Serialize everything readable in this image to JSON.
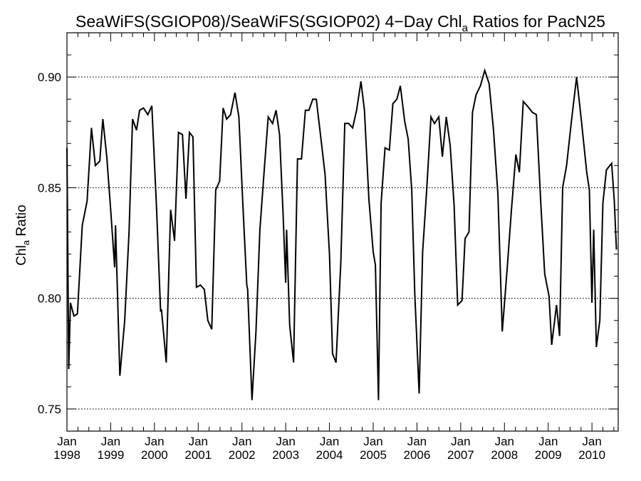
{
  "chart_data": {
    "type": "line",
    "title_prefix": "SeaWiFS(SGIOP08)/SeaWiFS(SGIOP02) 4−Day Chl",
    "title_subscript": "a",
    "title_suffix": " Ratios for PacN25",
    "ylabel_prefix": "Chl",
    "ylabel_subscript": "a",
    "ylabel_suffix": " Ratio",
    "ylim": [
      0.74,
      0.92
    ],
    "xlim": [
      1998.0,
      2010.6
    ],
    "grid": "horizontal dotted at major y ticks",
    "y_major_ticks": [
      0.75,
      0.8,
      0.85,
      0.9
    ],
    "y_tick_labels": [
      "0.75",
      "0.80",
      "0.85",
      "0.90"
    ],
    "x_ticks": [
      {
        "x": 1998,
        "month": "Jan",
        "year": "1998"
      },
      {
        "x": 1999,
        "month": "Jan",
        "year": "1999"
      },
      {
        "x": 2000,
        "month": "Jan",
        "year": "2000"
      },
      {
        "x": 2001,
        "month": "Jan",
        "year": "2001"
      },
      {
        "x": 2002,
        "month": "Jan",
        "year": "2002"
      },
      {
        "x": 2003,
        "month": "Jan",
        "year": "2003"
      },
      {
        "x": 2004,
        "month": "Jan",
        "year": "2004"
      },
      {
        "x": 2005,
        "month": "Jan",
        "year": "2005"
      },
      {
        "x": 2006,
        "month": "Jan",
        "year": "2006"
      },
      {
        "x": 2007,
        "month": "Jan",
        "year": "2007"
      },
      {
        "x": 2008,
        "month": "Jan",
        "year": "2008"
      },
      {
        "x": 2009,
        "month": "Jan",
        "year": "2009"
      },
      {
        "x": 2010,
        "month": "Jan",
        "year": "2010"
      }
    ],
    "series": [
      {
        "color": "#000000",
        "points": [
          [
            1998.0,
            0.868
          ],
          [
            1998.04,
            0.768
          ],
          [
            1998.08,
            0.798
          ],
          [
            1998.16,
            0.792
          ],
          [
            1998.24,
            0.793
          ],
          [
            1998.35,
            0.833
          ],
          [
            1998.46,
            0.844
          ],
          [
            1998.56,
            0.877
          ],
          [
            1998.65,
            0.86
          ],
          [
            1998.75,
            0.862
          ],
          [
            1998.82,
            0.881
          ],
          [
            1998.91,
            0.864
          ],
          [
            1999.0,
            0.84
          ],
          [
            1999.09,
            0.814
          ],
          [
            1999.11,
            0.833
          ],
          [
            1999.21,
            0.765
          ],
          [
            1999.32,
            0.79
          ],
          [
            1999.42,
            0.83
          ],
          [
            1999.5,
            0.881
          ],
          [
            1999.59,
            0.876
          ],
          [
            1999.66,
            0.885
          ],
          [
            1999.75,
            0.886
          ],
          [
            1999.85,
            0.883
          ],
          [
            1999.94,
            0.887
          ],
          [
            2000.05,
            0.84
          ],
          [
            2000.14,
            0.794
          ],
          [
            2000.16,
            0.795
          ],
          [
            2000.27,
            0.771
          ],
          [
            2000.37,
            0.84
          ],
          [
            2000.46,
            0.826
          ],
          [
            2000.55,
            0.875
          ],
          [
            2000.64,
            0.874
          ],
          [
            2000.72,
            0.845
          ],
          [
            2000.8,
            0.875
          ],
          [
            2000.88,
            0.873
          ],
          [
            2000.96,
            0.805
          ],
          [
            2001.05,
            0.806
          ],
          [
            2001.14,
            0.804
          ],
          [
            2001.22,
            0.79
          ],
          [
            2001.31,
            0.786
          ],
          [
            2001.4,
            0.849
          ],
          [
            2001.49,
            0.853
          ],
          [
            2001.57,
            0.886
          ],
          [
            2001.65,
            0.881
          ],
          [
            2001.74,
            0.883
          ],
          [
            2001.84,
            0.893
          ],
          [
            2001.93,
            0.882
          ],
          [
            2002.02,
            0.843
          ],
          [
            2002.11,
            0.806
          ],
          [
            2002.13,
            0.804
          ],
          [
            2002.23,
            0.754
          ],
          [
            2002.32,
            0.785
          ],
          [
            2002.41,
            0.831
          ],
          [
            2002.51,
            0.858
          ],
          [
            2002.6,
            0.882
          ],
          [
            2002.7,
            0.879
          ],
          [
            2002.78,
            0.885
          ],
          [
            2002.86,
            0.874
          ],
          [
            2002.94,
            0.838
          ],
          [
            2003.0,
            0.807
          ],
          [
            2003.02,
            0.831
          ],
          [
            2003.09,
            0.788
          ],
          [
            2003.18,
            0.771
          ],
          [
            2003.27,
            0.863
          ],
          [
            2003.36,
            0.863
          ],
          [
            2003.45,
            0.885
          ],
          [
            2003.53,
            0.885
          ],
          [
            2003.62,
            0.89
          ],
          [
            2003.7,
            0.89
          ],
          [
            2003.8,
            0.873
          ],
          [
            2003.9,
            0.856
          ],
          [
            2004.0,
            0.82
          ],
          [
            2004.07,
            0.775
          ],
          [
            2004.15,
            0.771
          ],
          [
            2004.26,
            0.816
          ],
          [
            2004.35,
            0.879
          ],
          [
            2004.44,
            0.879
          ],
          [
            2004.53,
            0.877
          ],
          [
            2004.62,
            0.885
          ],
          [
            2004.72,
            0.898
          ],
          [
            2004.8,
            0.885
          ],
          [
            2004.9,
            0.845
          ],
          [
            2005.0,
            0.821
          ],
          [
            2005.05,
            0.815
          ],
          [
            2005.12,
            0.754
          ],
          [
            2005.18,
            0.843
          ],
          [
            2005.27,
            0.868
          ],
          [
            2005.37,
            0.867
          ],
          [
            2005.45,
            0.888
          ],
          [
            2005.54,
            0.89
          ],
          [
            2005.62,
            0.896
          ],
          [
            2005.72,
            0.88
          ],
          [
            2005.8,
            0.872
          ],
          [
            2005.88,
            0.849
          ],
          [
            2005.95,
            0.802
          ],
          [
            2006.05,
            0.757
          ],
          [
            2006.13,
            0.821
          ],
          [
            2006.22,
            0.848
          ],
          [
            2006.32,
            0.882
          ],
          [
            2006.4,
            0.879
          ],
          [
            2006.5,
            0.882
          ],
          [
            2006.58,
            0.864
          ],
          [
            2006.67,
            0.882
          ],
          [
            2006.76,
            0.869
          ],
          [
            2006.85,
            0.842
          ],
          [
            2006.93,
            0.797
          ],
          [
            2007.03,
            0.799
          ],
          [
            2007.1,
            0.827
          ],
          [
            2007.19,
            0.83
          ],
          [
            2007.27,
            0.884
          ],
          [
            2007.35,
            0.892
          ],
          [
            2007.45,
            0.896
          ],
          [
            2007.55,
            0.903
          ],
          [
            2007.65,
            0.897
          ],
          [
            2007.75,
            0.876
          ],
          [
            2007.85,
            0.847
          ],
          [
            2007.95,
            0.785
          ],
          [
            2008.06,
            0.813
          ],
          [
            2008.16,
            0.84
          ],
          [
            2008.26,
            0.865
          ],
          [
            2008.34,
            0.857
          ],
          [
            2008.43,
            0.889
          ],
          [
            2008.52,
            0.887
          ],
          [
            2008.64,
            0.884
          ],
          [
            2008.73,
            0.883
          ],
          [
            2008.83,
            0.843
          ],
          [
            2008.92,
            0.811
          ],
          [
            2009.02,
            0.801
          ],
          [
            2009.08,
            0.779
          ],
          [
            2009.19,
            0.797
          ],
          [
            2009.26,
            0.783
          ],
          [
            2009.33,
            0.85
          ],
          [
            2009.42,
            0.86
          ],
          [
            2009.53,
            0.88
          ],
          [
            2009.65,
            0.9
          ],
          [
            2009.76,
            0.88
          ],
          [
            2009.88,
            0.857
          ],
          [
            2009.94,
            0.849
          ],
          [
            2010.0,
            0.798
          ],
          [
            2010.04,
            0.831
          ],
          [
            2010.1,
            0.778
          ],
          [
            2010.18,
            0.79
          ],
          [
            2010.25,
            0.843
          ],
          [
            2010.33,
            0.858
          ],
          [
            2010.41,
            0.86
          ],
          [
            2010.45,
            0.861
          ],
          [
            2010.51,
            0.844
          ],
          [
            2010.56,
            0.822
          ]
        ]
      }
    ]
  }
}
